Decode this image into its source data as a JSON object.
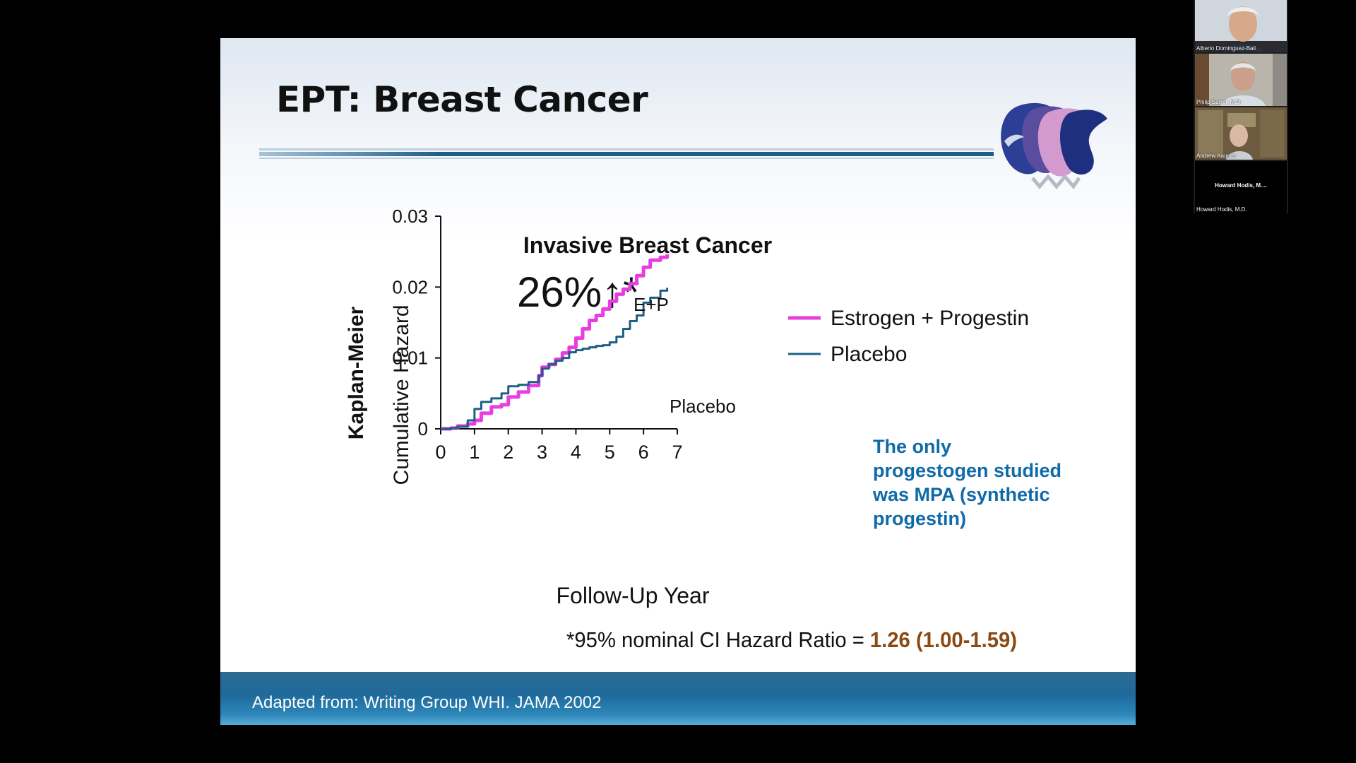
{
  "slide": {
    "title": "EPT: Breast Cancer",
    "footer": "Adapted from: Writing Group WHI. JAMA 2002"
  },
  "chart_data": {
    "type": "line",
    "title": "Invasive Breast Cancer",
    "big_stat": "26%↑*",
    "ylabel": "Cumulative Hazard",
    "ylabel_outer": "Kaplan-Meier",
    "xlabel": "Follow-Up Year",
    "xlim": [
      0,
      7
    ],
    "ylim": [
      0,
      0.03
    ],
    "xticks": [
      "0",
      "1",
      "2",
      "3",
      "4",
      "5",
      "6",
      "7"
    ],
    "yticks": [
      "0",
      "0.01",
      "0.02",
      "0.03"
    ],
    "grid": false,
    "legend_position": "top-right",
    "series": [
      {
        "name": "Estrogen + Progestin",
        "curve_label": "E+P",
        "color": "#e83de0",
        "x": [
          0,
          0.3,
          0.5,
          0.8,
          1.0,
          1.2,
          1.5,
          1.8,
          2.0,
          2.3,
          2.6,
          2.9,
          3.0,
          3.2,
          3.4,
          3.6,
          3.8,
          4.0,
          4.2,
          4.4,
          4.6,
          4.8,
          5.0,
          5.2,
          5.4,
          5.6,
          5.8,
          6.0,
          6.2,
          6.5,
          6.7
        ],
        "y": [
          0,
          0.0001,
          0.0004,
          0.0007,
          0.0012,
          0.0022,
          0.0031,
          0.0034,
          0.0045,
          0.0052,
          0.0061,
          0.0075,
          0.0087,
          0.0091,
          0.0098,
          0.0107,
          0.0115,
          0.0128,
          0.0141,
          0.0153,
          0.016,
          0.0169,
          0.018,
          0.019,
          0.0197,
          0.0205,
          0.0216,
          0.0228,
          0.0238,
          0.0242,
          0.0246
        ]
      },
      {
        "name": "Placebo",
        "curve_label": "Placebo",
        "color": "#1e5f86",
        "x": [
          0,
          0.3,
          0.5,
          0.8,
          1.0,
          1.2,
          1.5,
          1.8,
          2.0,
          2.3,
          2.6,
          2.9,
          3.0,
          3.2,
          3.4,
          3.6,
          3.8,
          4.0,
          4.2,
          4.4,
          4.6,
          4.8,
          5.0,
          5.2,
          5.4,
          5.6,
          5.8,
          6.0,
          6.2,
          6.5,
          6.7
        ],
        "y": [
          0,
          0.0001,
          0.0003,
          0.0012,
          0.0028,
          0.0038,
          0.0043,
          0.005,
          0.006,
          0.0062,
          0.0066,
          0.0075,
          0.0085,
          0.0091,
          0.0096,
          0.01,
          0.0108,
          0.0111,
          0.0113,
          0.0115,
          0.0117,
          0.0118,
          0.0122,
          0.013,
          0.0141,
          0.0152,
          0.016,
          0.0178,
          0.0185,
          0.0195,
          0.0199
        ]
      }
    ],
    "note": "The only progestogen studied was MPA (synthetic progestin)",
    "note_color": "#0f6aa8",
    "ci_prefix": "*95% nominal CI Hazard Ratio = ",
    "ci_value": "1.26 (1.00-1.59)",
    "ci_color": "#8a4a12"
  },
  "participants": [
    {
      "name": "Alberto Dominguez-Bali"
    },
    {
      "name": "Philip Sarrel, M.D."
    },
    {
      "name": "Andrew Kaunitz"
    },
    {
      "display": "Howard Hodis, M....",
      "name": "Howard Hodis, M.D."
    }
  ],
  "colors": {
    "slide_title": "#111111",
    "footer_band": "#1f6a9c",
    "rule": "#1d5c87"
  }
}
